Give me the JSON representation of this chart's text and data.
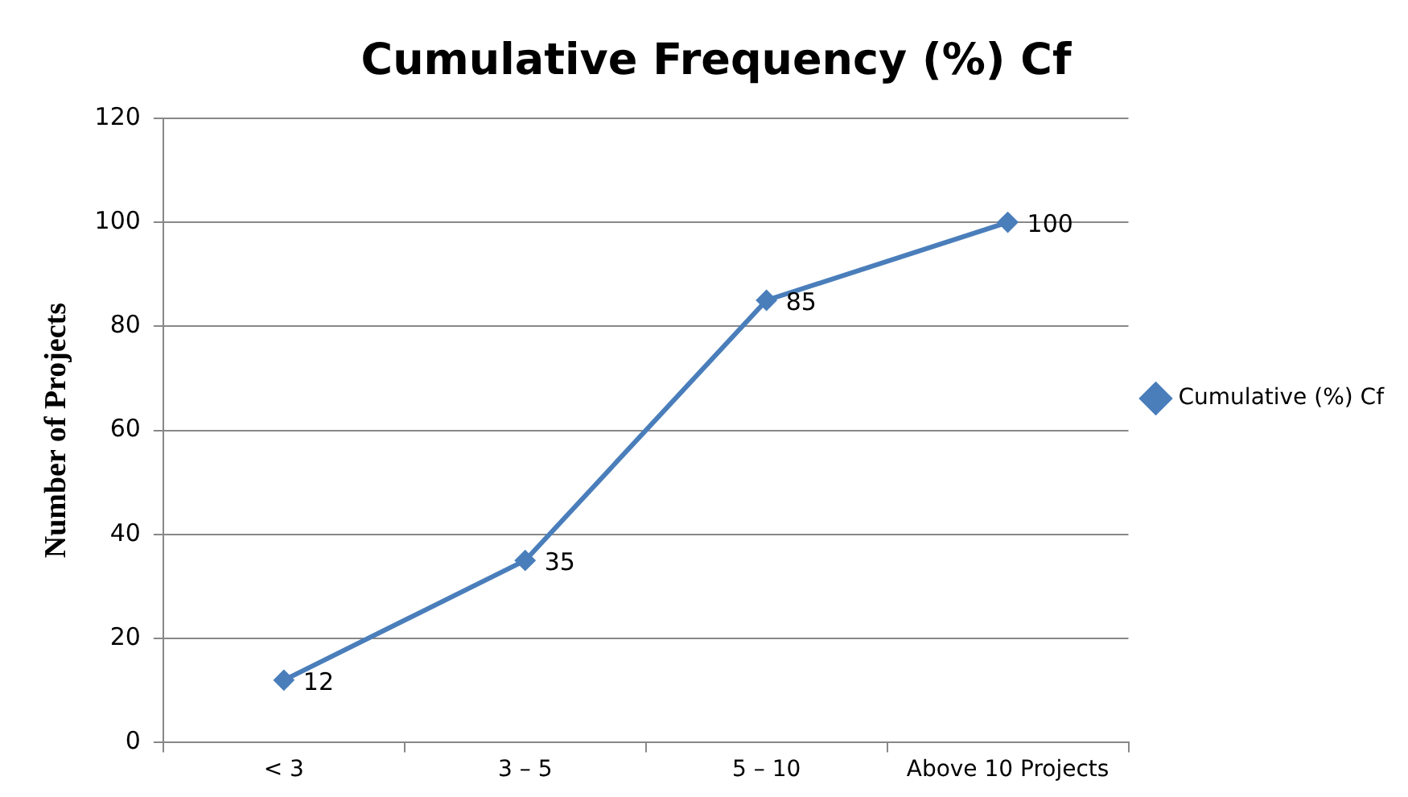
{
  "chart_data": {
    "type": "line",
    "title": "Cumulative Frequency (%) Cf",
    "ylabel": "Number of Projects",
    "categories": [
      "< 3",
      "3 – 5",
      "5 – 10",
      "Above 10 Projects"
    ],
    "series": [
      {
        "name": "Cumulative (%) Cf",
        "color": "#4a7ebb",
        "values": [
          12,
          35,
          85,
          100
        ]
      }
    ],
    "ylim": [
      0,
      120
    ],
    "yticks": [
      0,
      20,
      40,
      60,
      80,
      100,
      120
    ],
    "grid": "y",
    "legend": "right",
    "marker": "diamond",
    "line_style": "solid",
    "data_labels": true
  }
}
